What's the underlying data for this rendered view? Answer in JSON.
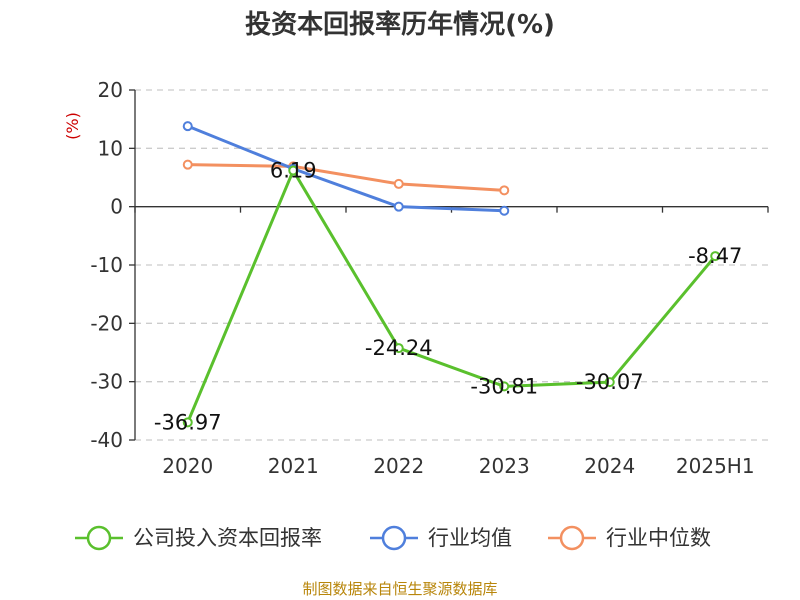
{
  "chart_data": {
    "type": "line",
    "title": "投资本回报率历年情况(%)",
    "ylabel": "(%)",
    "categories": [
      "2020",
      "2021",
      "2022",
      "2023",
      "2024",
      "2025H1"
    ],
    "ylim": [
      -40,
      20
    ],
    "yticks": [
      20,
      10,
      0,
      -10,
      -20,
      -30,
      -40
    ],
    "grid": true,
    "legend_position": "bottom",
    "series": [
      {
        "name": "公司投入资本回报率",
        "color": "#5ac02d",
        "values": [
          -36.97,
          6.19,
          -24.24,
          -30.81,
          -30.07,
          -8.47
        ],
        "labels": [
          "-36.97",
          "6.19",
          "-24.24",
          "-30.81",
          "-30.07",
          "-8.47"
        ]
      },
      {
        "name": "行业均值",
        "color": "#4f7fdc",
        "values": [
          13.8,
          6.5,
          0,
          -0.7,
          null,
          null
        ]
      },
      {
        "name": "行业中位数",
        "color": "#f39060",
        "values": [
          7.2,
          6.9,
          3.9,
          2.8,
          null,
          null
        ]
      }
    ]
  },
  "footer": {
    "source": "制图数据来自恒生聚源数据库"
  }
}
